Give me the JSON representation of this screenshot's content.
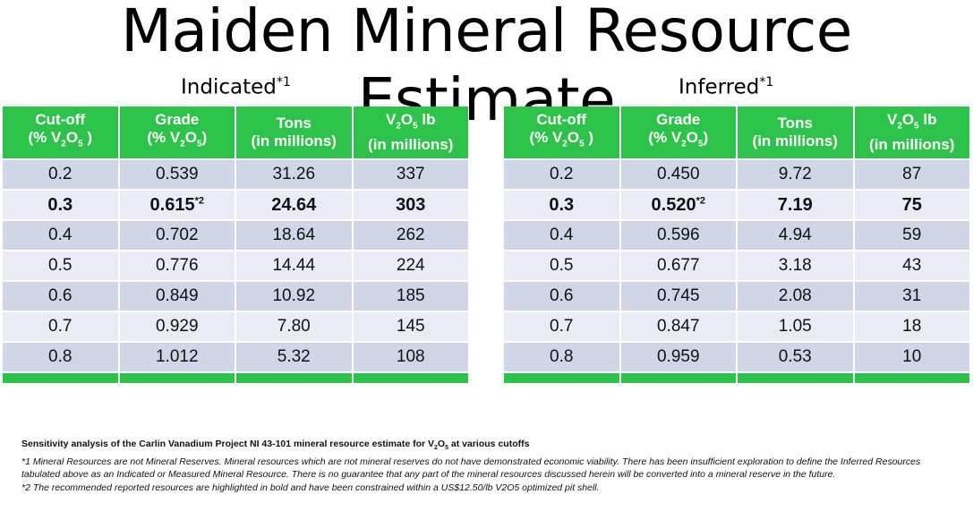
{
  "title": "Maiden Mineral Resource Estimate",
  "headers": [
    {
      "l1": "Cut-off",
      "l2": [
        "(% V",
        "2",
        "O",
        "5",
        " )"
      ]
    },
    {
      "l1": "Grade",
      "l2": [
        "(% V",
        "2",
        "O",
        "5",
        ")"
      ]
    },
    {
      "l1": "Tons",
      "l2": [
        "(in millions)",
        "",
        "",
        "",
        ""
      ]
    },
    {
      "l1": [
        "V",
        "2",
        "O",
        "5",
        " lb"
      ],
      "l2": [
        "(in millions)",
        "",
        "",
        "",
        ""
      ]
    }
  ],
  "tables": [
    {
      "name": "Indicated",
      "note": "*1",
      "rows": [
        [
          "0.2",
          "0.539",
          "31.26",
          "337"
        ],
        [
          "0.3",
          "0.615",
          "24.64",
          "303"
        ],
        [
          "0.4",
          "0.702",
          "18.64",
          "262"
        ],
        [
          "0.5",
          "0.776",
          "14.44",
          "224"
        ],
        [
          "0.6",
          "0.849",
          "10.92",
          "185"
        ],
        [
          "0.7",
          "0.929",
          "7.80",
          "145"
        ],
        [
          "0.8",
          "1.012",
          "5.32",
          "108"
        ]
      ],
      "bold_row": 1,
      "bold_note": "*2"
    },
    {
      "name": "Inferred",
      "note": "*1",
      "rows": [
        [
          "0.2",
          "0.450",
          "9.72",
          "87"
        ],
        [
          "0.3",
          "0.520",
          "7.19",
          "75"
        ],
        [
          "0.4",
          "0.596",
          "4.94",
          "59"
        ],
        [
          "0.5",
          "0.677",
          "3.18",
          "43"
        ],
        [
          "0.6",
          "0.745",
          "2.08",
          "31"
        ],
        [
          "0.7",
          "0.847",
          "1.05",
          "18"
        ],
        [
          "0.8",
          "0.959",
          "0.53",
          "10"
        ]
      ],
      "bold_row": 1,
      "bold_note": "*2"
    }
  ],
  "notes": {
    "heading_pre": "Sensitivity analysis of the Carlin Vanadium Project NI 43-101 mineral resource estimate for V",
    "heading_s1": "2",
    "heading_mid": "O",
    "heading_s2": "5",
    "heading_post": " at various cutoffs",
    "note1": "*1  Mineral Resources are not Mineral Reserves. Mineral resources which are not mineral reserves do not have demonstrated economic viability. There has been insufficient exploration to define the Inferred Resources tabulated above as an Indicated or Measured Mineral Resource. There is no guarantee that any part of the mineral resources discussed herein will be converted into a mineral reserve in the future.",
    "note2": "*2  The recommended reported resources are highlighted in bold and have been constrained within a US$12.50/lb V2O5 optimized pit shell."
  },
  "colors": {
    "header_green": "#2dc24a",
    "row_dark": "#d0d6e8",
    "row_light": "#e9ecf4"
  }
}
